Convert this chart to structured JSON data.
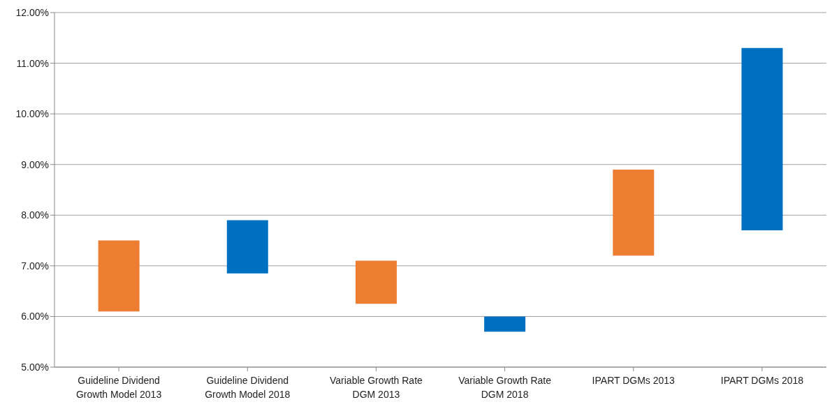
{
  "chart_data": {
    "type": "bar",
    "categories": [
      "Guideline Dividend Growth Model 2013",
      "Guideline Dividend Growth Model 2018",
      "Variable Growth Rate DGM 2013",
      "Variable Growth Rate DGM 2018",
      "IPART DGMs 2013",
      "IPART DGMs 2018"
    ],
    "base": [
      6.1,
      6.85,
      6.25,
      5.7,
      7.2,
      7.7
    ],
    "values": [
      1.4,
      1.05,
      0.85,
      0.3,
      1.7,
      3.6
    ],
    "colors": [
      "#ed7d31",
      "#0070c0",
      "#ed7d31",
      "#0070c0",
      "#ed7d31",
      "#0070c0"
    ],
    "ylim": [
      5,
      12
    ],
    "yticks": [
      {
        "value": 5,
        "label": "5.00%"
      },
      {
        "value": 6,
        "label": "6.00%"
      },
      {
        "value": 7,
        "label": "7.00%"
      },
      {
        "value": 8,
        "label": "8.00%"
      },
      {
        "value": 9,
        "label": "9.00%"
      },
      {
        "value": 10,
        "label": "10.00%"
      },
      {
        "value": 11,
        "label": "11.00%"
      },
      {
        "value": 12,
        "label": "12.00%"
      }
    ],
    "grid": "y"
  }
}
